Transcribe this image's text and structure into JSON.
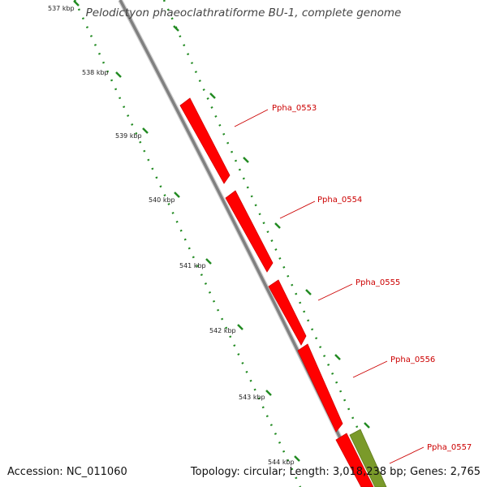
{
  "title": "Pelodictyon phaeoclathratiforme BU-1, complete genome",
  "footer": {
    "accession": "Accession: NC_011060",
    "summary": "Topology: circular; Length: 3,018,238 bp; Genes: 2,765"
  },
  "colors": {
    "backbone": "#808080",
    "gene_forward": "#ff0000",
    "gene_other": "#7a9a2a",
    "tick": "#228b22",
    "label_text": "#cc0000"
  },
  "ticks": [
    {
      "label": "537 kbp"
    },
    {
      "label": "538 kbp"
    },
    {
      "label": "539 kbp"
    },
    {
      "label": "540 kbp"
    },
    {
      "label": "541 kbp"
    },
    {
      "label": "542 kbp"
    },
    {
      "label": "543 kbp"
    },
    {
      "label": "544 kbp"
    }
  ],
  "genes": [
    {
      "name": "Ppha_0553"
    },
    {
      "name": "Ppha_0554"
    },
    {
      "name": "Ppha_0555"
    },
    {
      "name": "Ppha_0556"
    },
    {
      "name": "Ppha_0557"
    }
  ]
}
